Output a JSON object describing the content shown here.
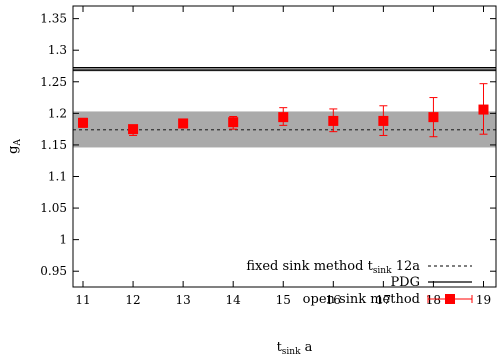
{
  "chart_data": {
    "type": "scatter",
    "xlabel": {
      "main": "t",
      "sub": "sink",
      "suffix": " a"
    },
    "ylabel": {
      "main": "g",
      "sub": "A"
    },
    "xlim": [
      10.8,
      19.25
    ],
    "ylim": [
      0.925,
      1.37
    ],
    "x_ticks": [
      11,
      12,
      13,
      14,
      15,
      16,
      17,
      18,
      19
    ],
    "y_ticks": [
      0.95,
      1,
      1.05,
      1.1,
      1.15,
      1.2,
      1.25,
      1.3,
      1.35
    ],
    "x_tick_labels": [
      "11",
      "12",
      "13",
      "14",
      "15",
      "16",
      "17",
      "18",
      "19"
    ],
    "y_tick_labels": [
      "0.95",
      "1",
      "1.05",
      "1.1",
      "1.15",
      "1.2",
      "1.25",
      "1.3",
      "1.35"
    ],
    "grid": false,
    "legend_position": "bottom-right",
    "fixed_sink": {
      "label": {
        "prefix": "fixed sink method  t",
        "sub": "sink",
        "suffix": "     12a"
      },
      "value": 1.174,
      "band": [
        1.146,
        1.203
      ],
      "color": "#333333",
      "band_color": "#aaaaaa"
    },
    "pdg": {
      "label": "PDG",
      "value": 1.2701,
      "band": [
        1.2676,
        1.2726
      ],
      "color": "#000000"
    },
    "open_sink": {
      "label": "open sink method",
      "color": "#ff0000",
      "x": [
        11,
        12,
        13,
        14,
        15,
        16,
        17,
        18,
        19
      ],
      "y": [
        1.185,
        1.175,
        1.184,
        1.186,
        1.194,
        1.188,
        1.188,
        1.194,
        1.206
      ],
      "err_low": [
        0.007,
        0.01,
        0.007,
        0.011,
        0.013,
        0.017,
        0.023,
        0.031,
        0.039
      ],
      "err_high": [
        0.007,
        0.006,
        0.005,
        0.009,
        0.015,
        0.019,
        0.024,
        0.031,
        0.041
      ]
    }
  }
}
